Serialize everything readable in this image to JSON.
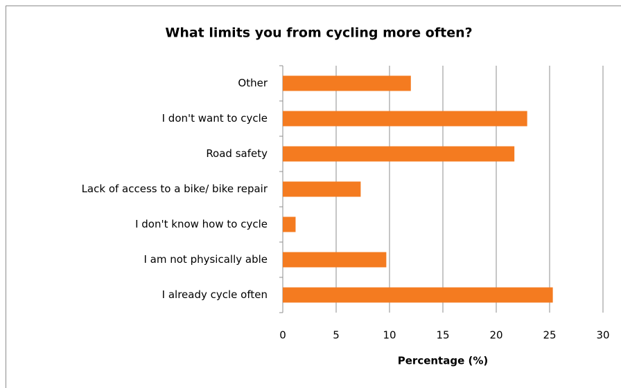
{
  "chart_data": {
    "type": "bar",
    "orientation": "horizontal",
    "title": "What limits you from cycling more often?",
    "x_label": "Percentage (%)",
    "categories": [
      "Other",
      "I don't want to cycle",
      "Road safety",
      "Lack of access to a bike/ bike repair",
      "I don't know how to cycle",
      "I am not physically able",
      "I already cycle often"
    ],
    "values": [
      12.0,
      22.9,
      21.7,
      7.3,
      1.2,
      9.7,
      25.3
    ],
    "color": "#f47b20",
    "xlim": [
      0,
      30
    ],
    "xticks": [
      0,
      5,
      10,
      15,
      20,
      25,
      30
    ],
    "grid": true
  }
}
